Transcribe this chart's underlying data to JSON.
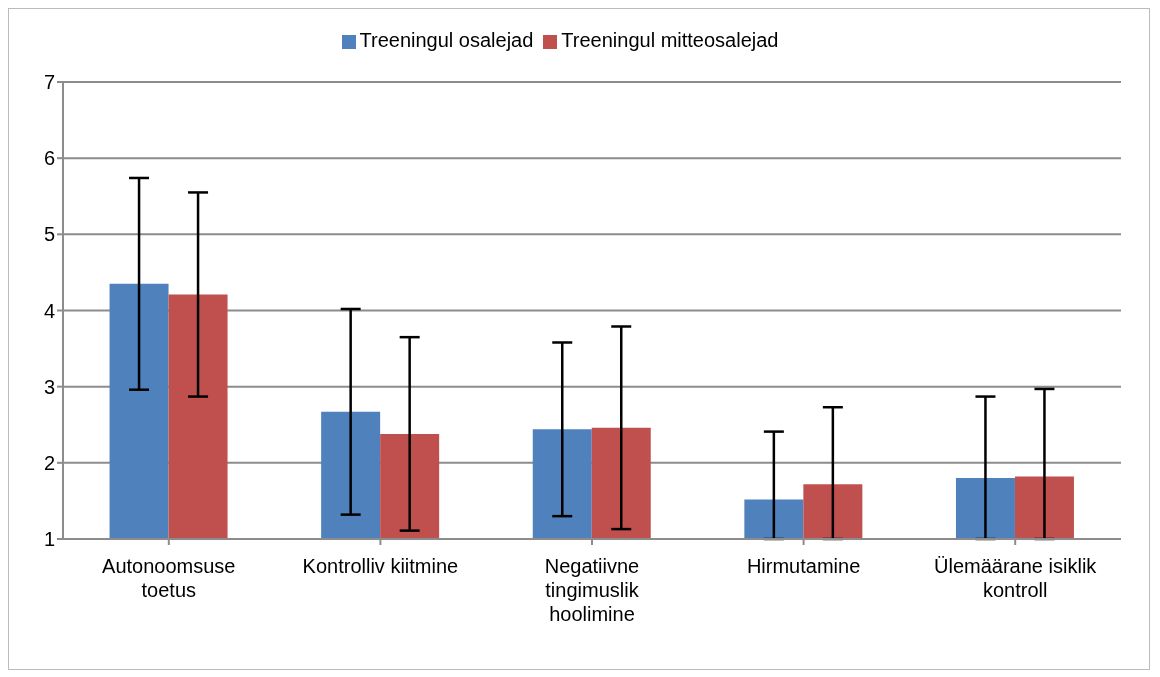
{
  "chart_data": {
    "type": "bar",
    "categories": [
      "Autonoomsuse toetus",
      "Kontrolliv kiitmine",
      "Negatiivne tingimuslik hoolimine",
      "Hirmutamine",
      "Ülemäärane isiklik kontroll"
    ],
    "series": [
      {
        "name": "Treeningul osalejad",
        "color": "#4f81bd",
        "values": [
          4.35,
          2.67,
          2.44,
          1.52,
          1.8
        ],
        "errors": [
          1.39,
          1.35,
          1.14,
          [
            1,
            2.41
          ],
          [
            1,
            2.87
          ]
        ]
      },
      {
        "name": "Treeningul mitteosalejad",
        "color": "#c0504d",
        "values": [
          4.21,
          2.38,
          2.46,
          1.72,
          1.82
        ],
        "errors": [
          1.34,
          1.27,
          1.33,
          [
            1,
            2.73
          ],
          [
            1,
            2.97
          ]
        ]
      }
    ],
    "ylim": [
      1,
      7
    ],
    "yticks": [
      1,
      2,
      3,
      4,
      5,
      6,
      7
    ],
    "grid": "y",
    "legend": "top"
  }
}
